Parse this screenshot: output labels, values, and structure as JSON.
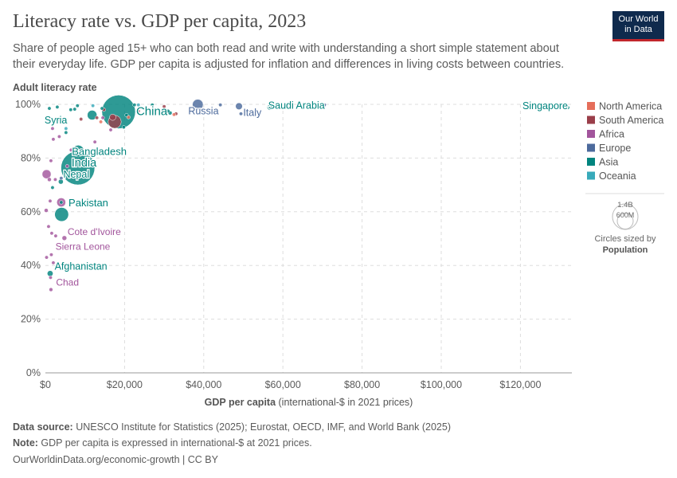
{
  "title": "Literacy rate vs. GDP per capita, 2023",
  "subtitle": "Share of people aged 15+ who can both read and write with understanding a short simple statement about their everyday life. GDP per capita is adjusted for inflation and differences in living costs between countries.",
  "logo": {
    "line1": "Our World",
    "line2": "in Data"
  },
  "legend": {
    "entries": [
      {
        "name": "North America",
        "color": "#e56e5a"
      },
      {
        "name": "South America",
        "color": "#9a3e4a"
      },
      {
        "name": "Africa",
        "color": "#a2559c"
      },
      {
        "name": "Europe",
        "color": "#4c6a9c"
      },
      {
        "name": "Asia",
        "color": "#00847e"
      },
      {
        "name": "Oceania",
        "color": "#38aaba"
      }
    ],
    "size_legend": {
      "big": "1.4B",
      "small": "600M",
      "caption1": "Circles sized by",
      "caption2": "Population"
    }
  },
  "chart_data": {
    "type": "scatter",
    "title": "Literacy rate vs. GDP per capita, 2023",
    "xlabel_bold": "GDP per capita",
    "xlabel_rest": " (international-$ in 2021 prices)",
    "ylabel": "Adult literacy rate",
    "xlim": [
      0,
      133000
    ],
    "ylim": [
      0,
      100
    ],
    "x_ticks": [
      0,
      20000,
      40000,
      60000,
      80000,
      100000,
      120000
    ],
    "x_tick_labels": [
      "$0",
      "$20,000",
      "$40,000",
      "$60,000",
      "$80,000",
      "$100,000",
      "$120,000"
    ],
    "y_ticks": [
      0,
      20,
      40,
      60,
      80,
      100
    ],
    "y_tick_labels": [
      "0%",
      "20%",
      "40%",
      "60%",
      "80%",
      "100%"
    ],
    "points": [
      {
        "label": "China",
        "region": "Asia",
        "x": 18500,
        "y": 97.2,
        "pop": 1410
      },
      {
        "label": "India",
        "region": "Asia",
        "x": 8200,
        "y": 76.3,
        "pop": 1430
      },
      {
        "label": "Bangladesh",
        "region": "Asia",
        "x": 8300,
        "y": 82.6,
        "pop": 172
      },
      {
        "label": "Pakistan",
        "region": "Asia",
        "x": 4100,
        "y": 59,
        "pop": 240
      },
      {
        "label": "Nepal",
        "region": "Asia",
        "x": 3900,
        "y": 71.2,
        "pop": 30
      },
      {
        "label": "Afghanistan",
        "region": "Asia",
        "x": 1200,
        "y": 37,
        "pop": 42
      },
      {
        "label": "Syria",
        "region": "Asia",
        "x": 3000,
        "y": 94.4,
        "pop": 23
      },
      {
        "label": "Saudi Arabia",
        "region": "Asia",
        "x": 56700,
        "y": 98.9,
        "pop": 36
      },
      {
        "label": "Singapore",
        "region": "Asia",
        "x": 132000,
        "y": 98.8,
        "pop": 6
      },
      {
        "label": "Russia",
        "region": "Europe",
        "x": 38500,
        "y": 99.9,
        "pop": 144
      },
      {
        "label": "Italy",
        "region": "Europe",
        "x": 48900,
        "y": 99.3,
        "pop": 59
      },
      {
        "label": "Cote d'Ivoire",
        "region": "Africa",
        "x": 4800,
        "y": 50.2,
        "pop": 28
      },
      {
        "label": "Sierra Leone",
        "region": "Africa",
        "x": 1500,
        "y": 44,
        "pop": 9
      },
      {
        "label": "Chad",
        "region": "Africa",
        "x": 1400,
        "y": 31,
        "pop": 18
      },
      {
        "label": "",
        "region": "Asia",
        "x": 11800,
        "y": 96,
        "pop": 117
      },
      {
        "label": "",
        "region": "South America",
        "x": 17500,
        "y": 93.5,
        "pop": 216
      },
      {
        "label": "",
        "region": "Asia",
        "x": 4000,
        "y": 63.5,
        "pop": 3
      },
      {
        "label": "",
        "region": "Africa",
        "x": 4000,
        "y": 63.5,
        "pop": 100
      },
      {
        "label": "",
        "region": "Africa",
        "x": 300,
        "y": 74,
        "pop": 100
      },
      {
        "label": "",
        "region": "Africa",
        "x": 1000,
        "y": 72,
        "pop": 20
      },
      {
        "label": "",
        "region": "Africa",
        "x": 2500,
        "y": 72,
        "pop": 12
      },
      {
        "label": "",
        "region": "Africa",
        "x": 200,
        "y": 60.5,
        "pop": 20
      },
      {
        "label": "",
        "region": "Africa",
        "x": 1200,
        "y": 64,
        "pop": 8
      },
      {
        "label": "",
        "region": "Africa",
        "x": 800,
        "y": 54.5,
        "pop": 6
      },
      {
        "label": "",
        "region": "Africa",
        "x": 1600,
        "y": 52,
        "pop": 6
      },
      {
        "label": "",
        "region": "Africa",
        "x": 2600,
        "y": 51,
        "pop": 5
      },
      {
        "label": "",
        "region": "Africa",
        "x": 300,
        "y": 43,
        "pop": 5
      },
      {
        "label": "",
        "region": "Africa",
        "x": 1300,
        "y": 35.5,
        "pop": 6
      },
      {
        "label": "",
        "region": "Africa",
        "x": 1400,
        "y": 79,
        "pop": 4
      },
      {
        "label": "",
        "region": "Africa",
        "x": 2000,
        "y": 87,
        "pop": 6
      },
      {
        "label": "",
        "region": "Africa",
        "x": 1800,
        "y": 91,
        "pop": 5
      },
      {
        "label": "",
        "region": "Africa",
        "x": 5500,
        "y": 77,
        "pop": 10
      },
      {
        "label": "",
        "region": "Africa",
        "x": 6500,
        "y": 83,
        "pop": 6
      },
      {
        "label": "",
        "region": "Africa",
        "x": 14500,
        "y": 95,
        "pop": 5
      },
      {
        "label": "",
        "region": "Africa",
        "x": 16500,
        "y": 90.5,
        "pop": 5
      },
      {
        "label": "",
        "region": "Africa",
        "x": 12500,
        "y": 86,
        "pop": 5
      },
      {
        "label": "",
        "region": "Africa",
        "x": 3500,
        "y": 88,
        "pop": 6
      },
      {
        "label": "",
        "region": "Africa",
        "x": 2000,
        "y": 41,
        "pop": 4
      },
      {
        "label": "",
        "region": "Asia",
        "x": 5200,
        "y": 89.5,
        "pop": 6
      },
      {
        "label": "",
        "region": "Asia",
        "x": 6400,
        "y": 98,
        "pop": 6
      },
      {
        "label": "",
        "region": "Asia",
        "x": 8100,
        "y": 99.5,
        "pop": 6
      },
      {
        "label": "",
        "region": "Asia",
        "x": 7400,
        "y": 98.2,
        "pop": 8
      },
      {
        "label": "",
        "region": "Asia",
        "x": 14300,
        "y": 98.5,
        "pop": 8
      },
      {
        "label": "",
        "region": "Asia",
        "x": 19800,
        "y": 91.5,
        "pop": 8
      },
      {
        "label": "",
        "region": "Asia",
        "x": 20500,
        "y": 96,
        "pop": 5
      },
      {
        "label": "",
        "region": "Asia",
        "x": 31000,
        "y": 97.5,
        "pop": 7
      },
      {
        "label": "",
        "region": "Asia",
        "x": 1800,
        "y": 69,
        "pop": 4
      },
      {
        "label": "",
        "region": "Asia",
        "x": 1000,
        "y": 98.5,
        "pop": 5
      },
      {
        "label": "",
        "region": "Asia",
        "x": 3000,
        "y": 99,
        "pop": 6
      },
      {
        "label": "",
        "region": "Asia",
        "x": 22500,
        "y": 99.8,
        "pop": 4
      },
      {
        "label": "",
        "region": "Asia",
        "x": 27000,
        "y": 99.8,
        "pop": 4
      },
      {
        "label": "",
        "region": "Asia",
        "x": 31500,
        "y": 96.8,
        "pop": 20
      },
      {
        "label": "",
        "region": "South America",
        "x": 14800,
        "y": 98,
        "pop": 10
      },
      {
        "label": "",
        "region": "South America",
        "x": 17000,
        "y": 95.2,
        "pop": 50
      },
      {
        "label": "",
        "region": "South America",
        "x": 23500,
        "y": 97.5,
        "pop": 8
      },
      {
        "label": "",
        "region": "South America",
        "x": 30000,
        "y": 99.2,
        "pop": 10
      },
      {
        "label": "",
        "region": "South America",
        "x": 33000,
        "y": 96.5,
        "pop": 4
      },
      {
        "label": "",
        "region": "South America",
        "x": 9000,
        "y": 94.5,
        "pop": 6
      },
      {
        "label": "",
        "region": "South America",
        "x": 13000,
        "y": 95,
        "pop": 6
      },
      {
        "label": "",
        "region": "North America",
        "x": 21000,
        "y": 95.2,
        "pop": 5
      },
      {
        "label": "",
        "region": "North America",
        "x": 32500,
        "y": 96.2,
        "pop": 4
      },
      {
        "label": "",
        "region": "North America",
        "x": 14000,
        "y": 93.5,
        "pop": 4
      },
      {
        "label": "",
        "region": "Europe",
        "x": 44200,
        "y": 99.8,
        "pop": 10
      },
      {
        "label": "",
        "region": "Europe",
        "x": 70500,
        "y": 99.8,
        "pop": 3
      },
      {
        "label": "",
        "region": "Europe",
        "x": 49400,
        "y": 96.5,
        "pop": 4
      },
      {
        "label": "",
        "region": "Europe",
        "x": 4000,
        "y": 72.5,
        "pop": 4
      },
      {
        "label": "",
        "region": "Oceania",
        "x": 3900,
        "y": 94.5,
        "pop": 4
      },
      {
        "label": "",
        "region": "Oceania",
        "x": 5200,
        "y": 91,
        "pop": 4
      },
      {
        "label": "",
        "region": "Oceania",
        "x": 12000,
        "y": 99.5,
        "pop": 4
      },
      {
        "label": "",
        "region": "Oceania",
        "x": 23500,
        "y": 99.8,
        "pop": 4
      }
    ]
  },
  "footer": {
    "source_label": "Data source:",
    "source_text": " UNESCO Institute for Statistics (2025); Eurostat, OECD, IMF, and World Bank (2025)",
    "note_label": "Note:",
    "note_text": " GDP per capita is expressed in international-$ at 2021 prices.",
    "credit": "OurWorldinData.org/economic-growth | CC BY"
  }
}
